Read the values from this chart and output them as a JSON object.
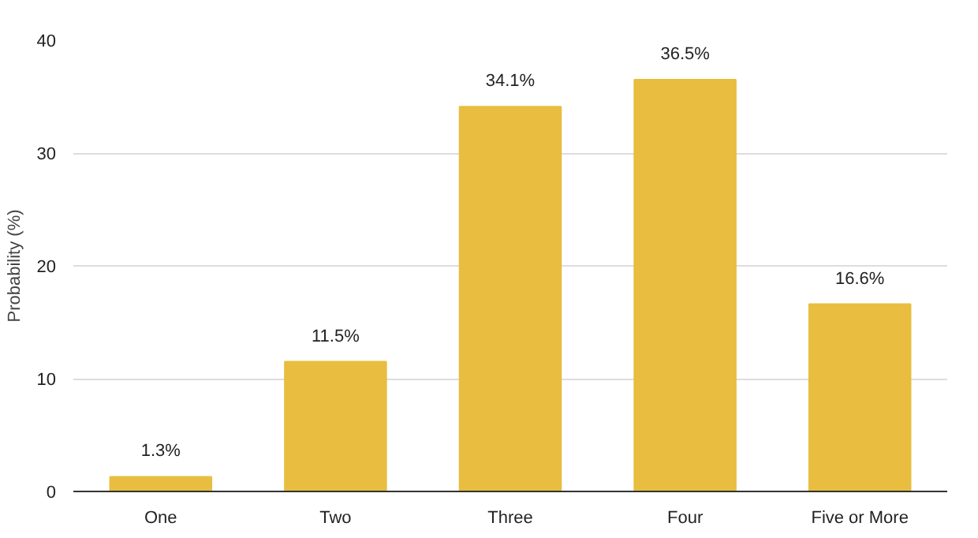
{
  "chart_data": {
    "type": "bar",
    "ylabel": "Probability (%)",
    "categories": [
      "One",
      "Two",
      "Three",
      "Four",
      "Five or More"
    ],
    "values": [
      1.3,
      11.5,
      34.1,
      36.5,
      16.6
    ],
    "value_labels": [
      "1.3%",
      "11.5%",
      "34.1%",
      "36.5%",
      "16.6%"
    ],
    "color": "#e8bd40",
    "ylim": [
      0,
      40
    ],
    "yticks": [
      0,
      10,
      20,
      30,
      40
    ],
    "grid": "y"
  }
}
